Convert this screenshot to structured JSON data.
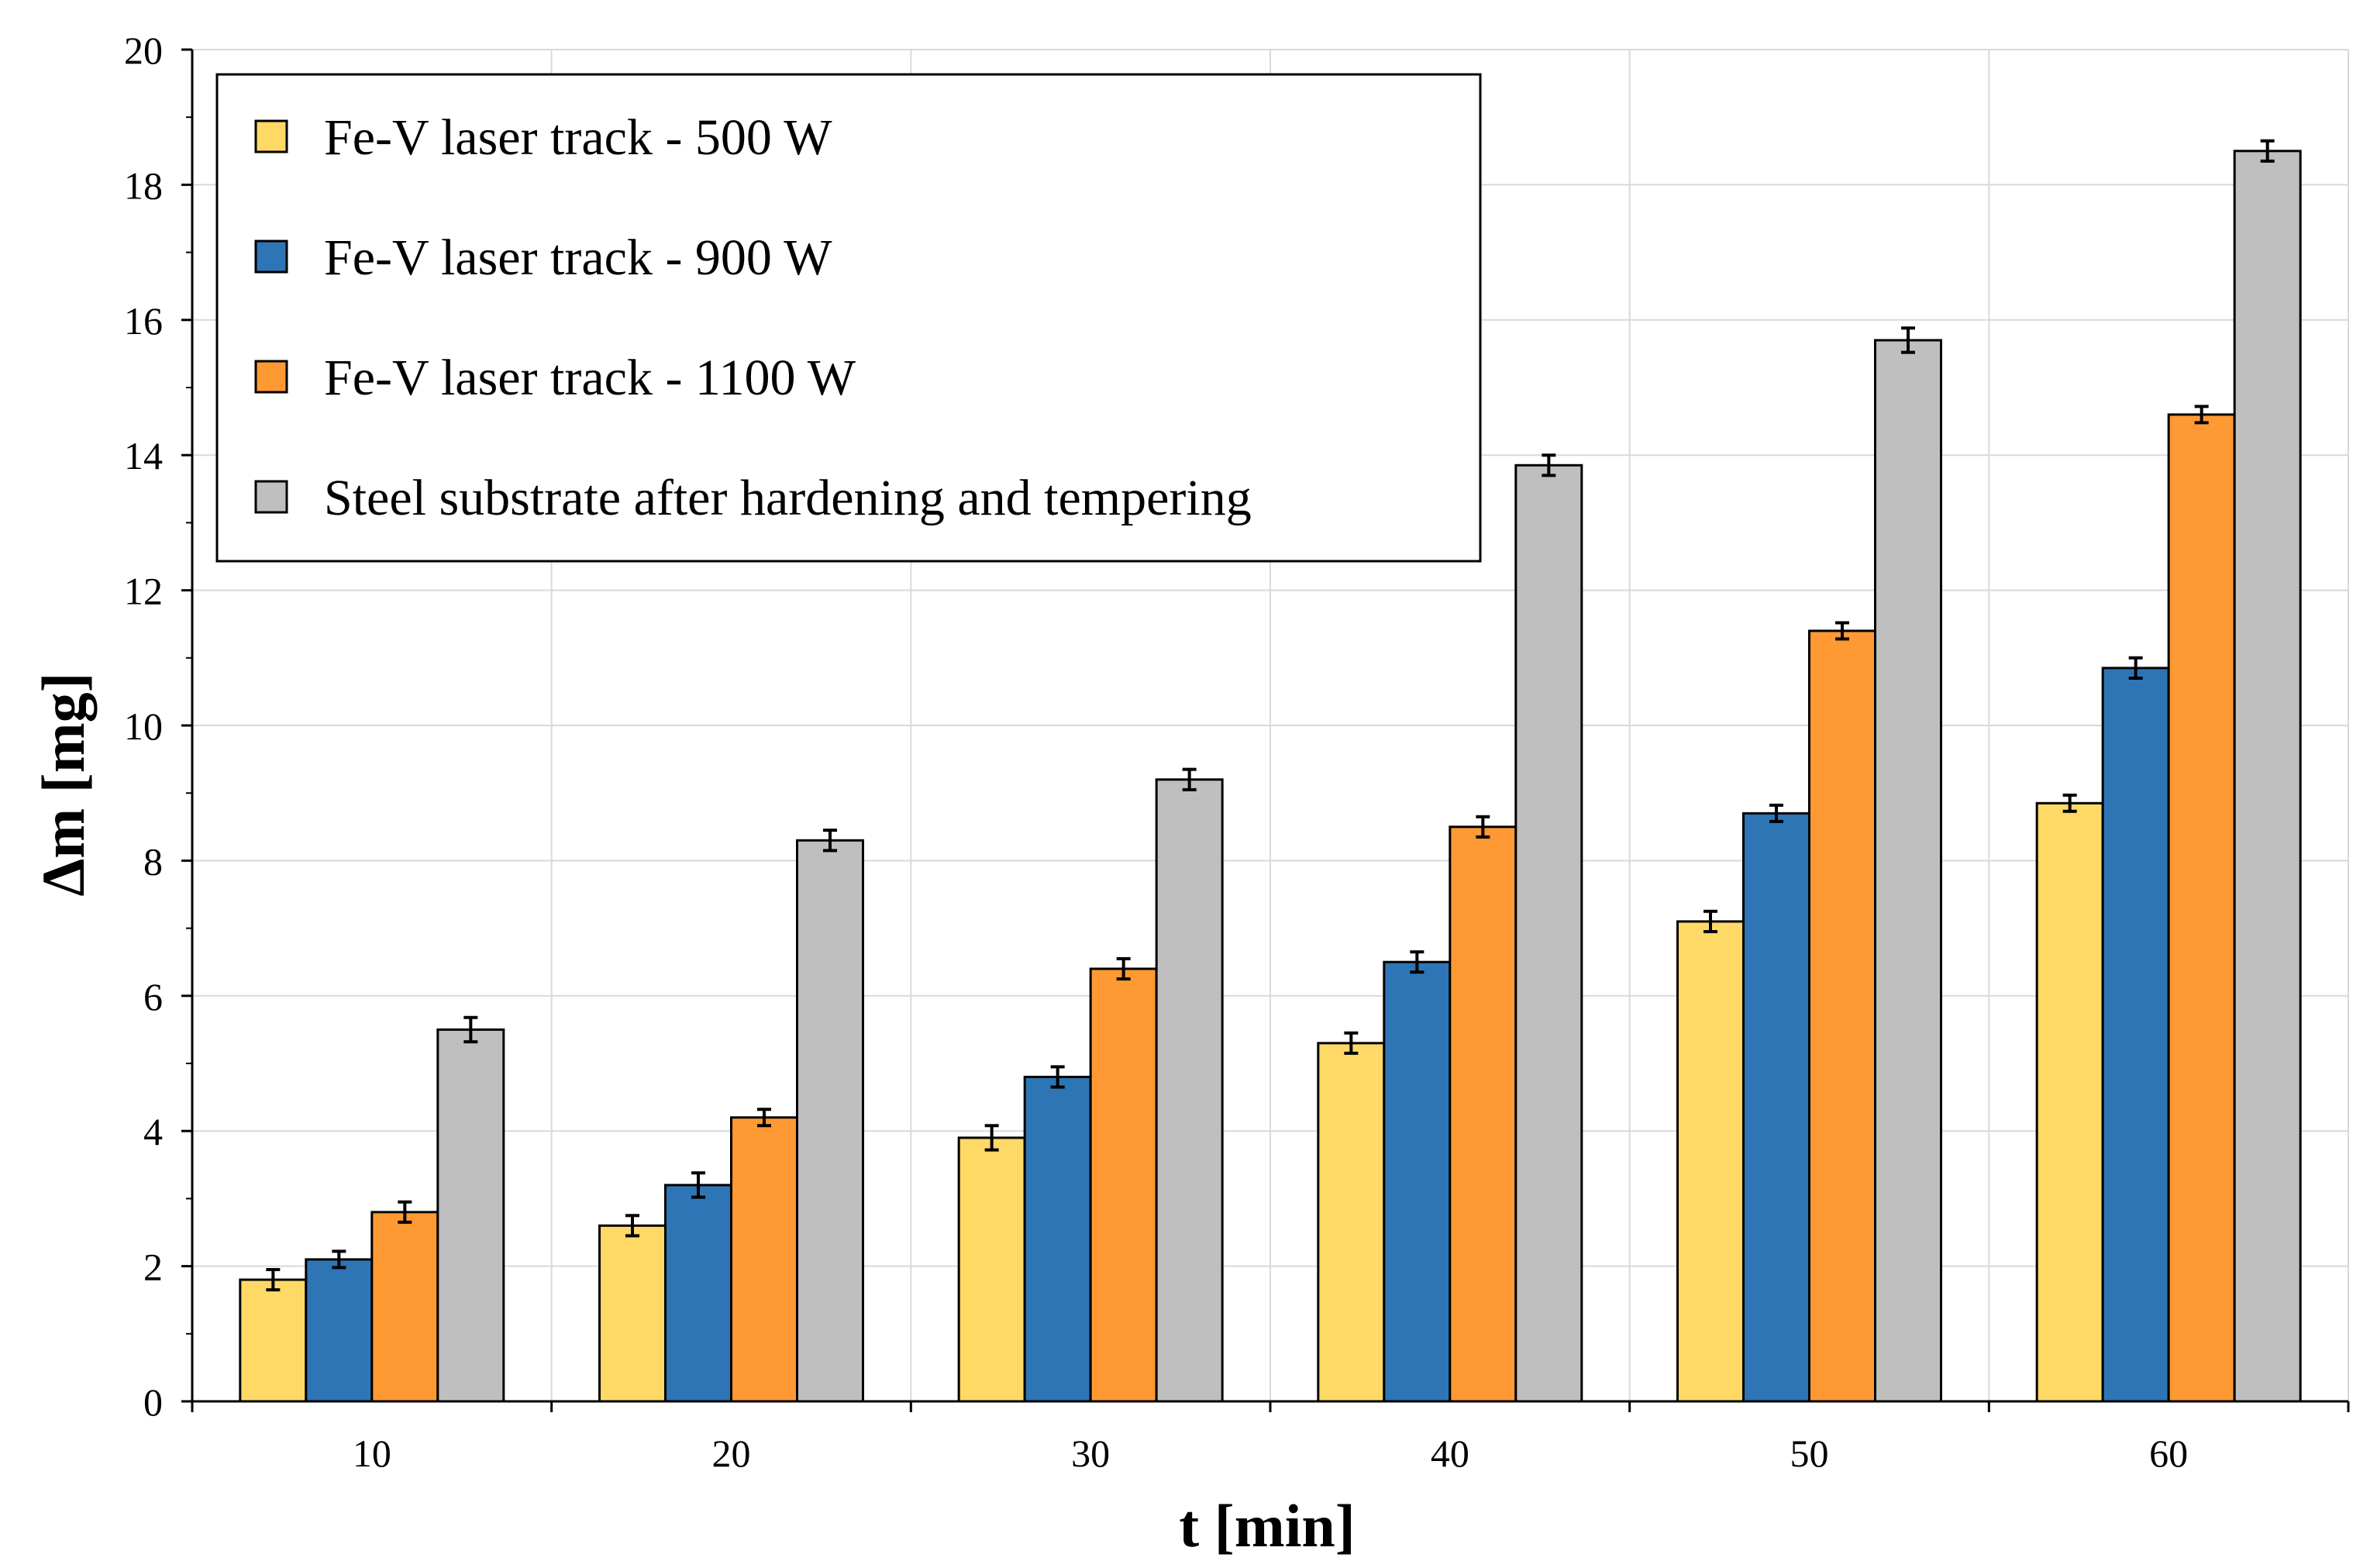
{
  "chart_data": {
    "type": "bar",
    "title": "",
    "xlabel": "t [min]",
    "ylabel": "Δm [mg]",
    "categories": [
      "10",
      "20",
      "30",
      "40",
      "50",
      "60"
    ],
    "ylim": [
      0,
      20
    ],
    "yticks": [
      0,
      2,
      4,
      6,
      8,
      10,
      12,
      14,
      16,
      18,
      20
    ],
    "grid": true,
    "legend_position": "top-left",
    "series": [
      {
        "name": "Fe-V  laser track - 500 W",
        "color": "#ffd966",
        "values": [
          1.8,
          2.6,
          3.9,
          5.3,
          7.1,
          8.85
        ],
        "errors": [
          0.15,
          0.15,
          0.18,
          0.15,
          0.15,
          0.12
        ]
      },
      {
        "name": "Fe-V  laser track - 900 W",
        "color": "#2e75b6",
        "values": [
          2.1,
          3.2,
          4.8,
          6.5,
          8.7,
          10.85
        ],
        "errors": [
          0.12,
          0.18,
          0.15,
          0.15,
          0.12,
          0.15
        ]
      },
      {
        "name": "Fe-V  laser track - 1100 W",
        "color": "#ff9933",
        "values": [
          2.8,
          4.2,
          6.4,
          8.5,
          11.4,
          14.6
        ],
        "errors": [
          0.15,
          0.12,
          0.15,
          0.15,
          0.12,
          0.12
        ]
      },
      {
        "name": "Steel substrate after hardening and tempering",
        "color": "#bfbfbf",
        "values": [
          5.5,
          8.3,
          9.2,
          13.85,
          15.7,
          18.5
        ],
        "errors": [
          0.18,
          0.15,
          0.15,
          0.15,
          0.18,
          0.15
        ]
      }
    ]
  }
}
